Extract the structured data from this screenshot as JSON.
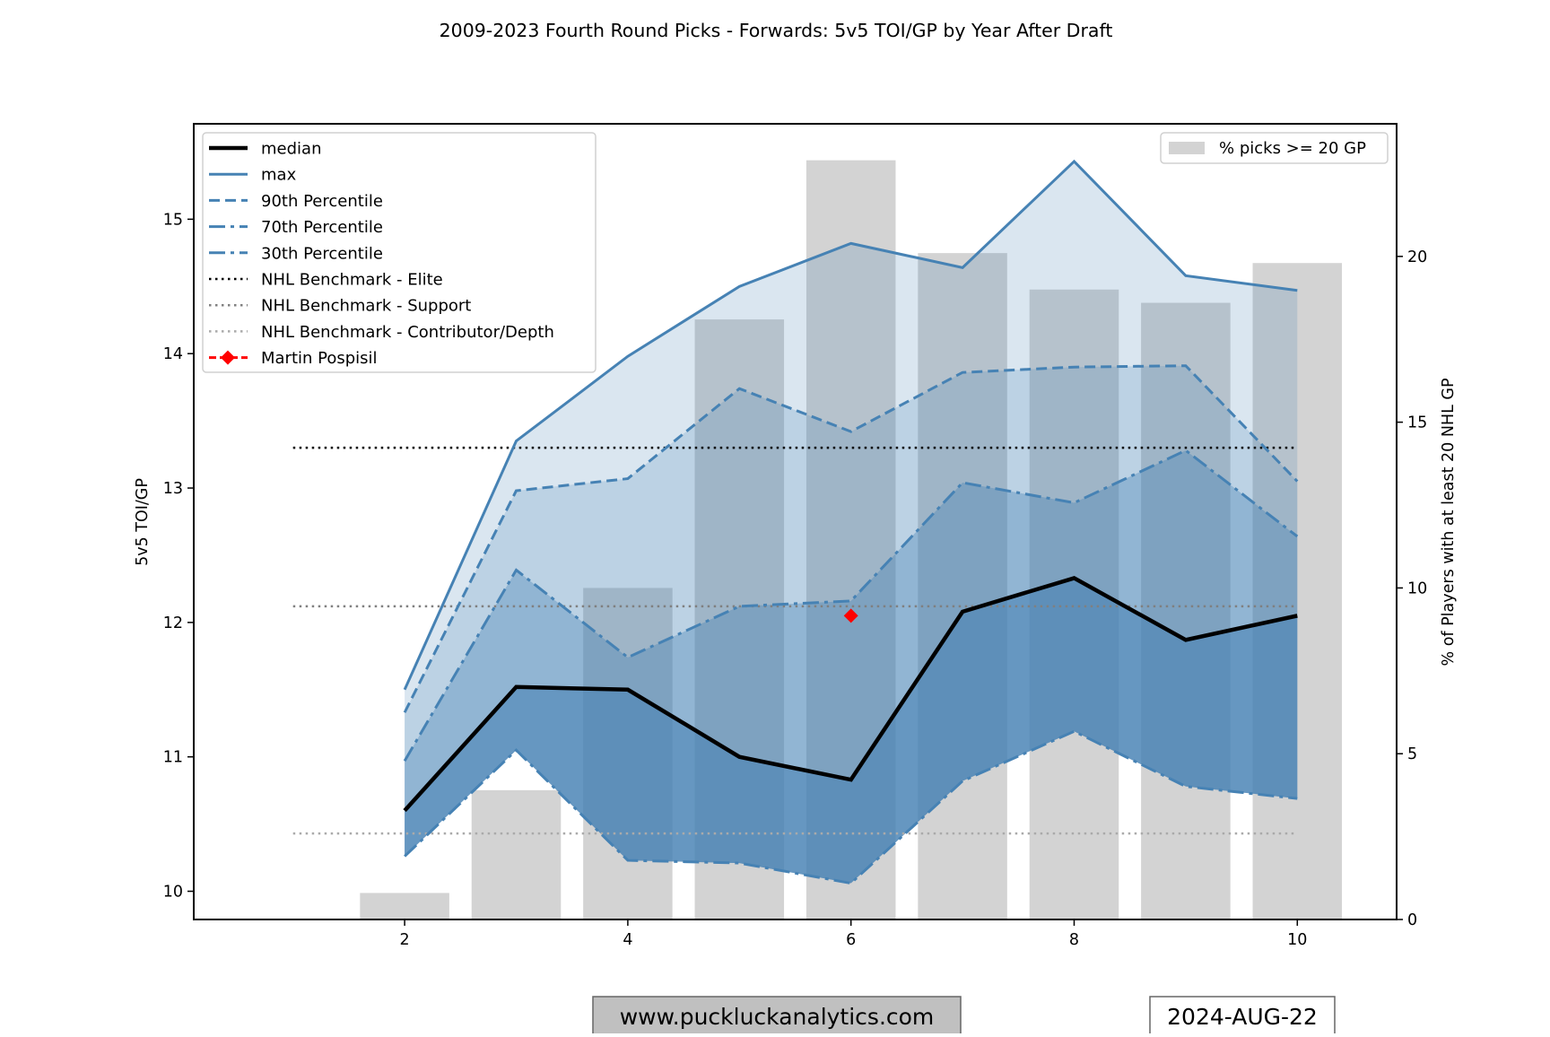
{
  "chart_data": {
    "type": "line",
    "title": "2009-2023 Fourth Round Picks - Forwards: 5v5 TOI/GP by Year After Draft",
    "xlabel": "",
    "ylabel": "5v5 TOI/GP",
    "y2label": "% of Players with at least 20 NHL GP",
    "xlim": [
      0.11,
      10.89
    ],
    "ylim": [
      9.79,
      15.71
    ],
    "y2lim": [
      0,
      24
    ],
    "x": [
      2,
      3,
      4,
      5,
      6,
      7,
      8,
      9,
      10
    ],
    "xticks": [
      "2",
      "4",
      "6",
      "8",
      "10"
    ],
    "yticks": [
      "10",
      "11",
      "12",
      "13",
      "14",
      "15"
    ],
    "y2ticks": [
      "0",
      "5",
      "10",
      "15",
      "20"
    ],
    "series": [
      {
        "name": "median",
        "values": [
          10.6,
          11.52,
          11.5,
          11.0,
          10.83,
          12.08,
          12.33,
          11.87,
          12.05
        ]
      },
      {
        "name": "max",
        "values": [
          11.5,
          13.35,
          13.98,
          14.5,
          14.82,
          14.64,
          15.43,
          14.58,
          14.47
        ]
      },
      {
        "name": "90th Percentile",
        "values": [
          11.33,
          12.98,
          13.07,
          13.74,
          13.42,
          13.86,
          13.9,
          13.91,
          13.05
        ]
      },
      {
        "name": "70th Percentile",
        "values": [
          10.97,
          12.39,
          11.74,
          12.12,
          12.16,
          13.04,
          12.89,
          13.28,
          12.64
        ]
      },
      {
        "name": "30th Percentile",
        "values": [
          10.26,
          11.05,
          10.23,
          10.21,
          10.06,
          10.82,
          11.19,
          10.78,
          10.69
        ]
      }
    ],
    "benchmarks": [
      {
        "name": "NHL Benchmark - Elite",
        "value": 13.3,
        "color": "#000000"
      },
      {
        "name": "NHL Benchmark - Support",
        "value": 12.12,
        "color": "#808080"
      },
      {
        "name": "NHL Benchmark - Contributor/Depth",
        "value": 10.43,
        "color": "#aaaaaa"
      }
    ],
    "benchmark_x": [
      1,
      10
    ],
    "player": {
      "name": "Martin Pospisil",
      "x": 6,
      "value": 12.05,
      "color": "#ff0000"
    },
    "bars": {
      "name": "% picks >= 20 GP",
      "values": [
        0.8,
        3.9,
        10.0,
        18.1,
        22.9,
        20.1,
        19.0,
        18.6,
        19.8
      ],
      "color": "#d3d3d3"
    },
    "legend_left": "top-left",
    "legend_right": "top-right",
    "grid": false,
    "accent": "#4682b4"
  },
  "footer": {
    "website": "www.puckluckanalytics.com",
    "date": "2024-AUG-22"
  }
}
